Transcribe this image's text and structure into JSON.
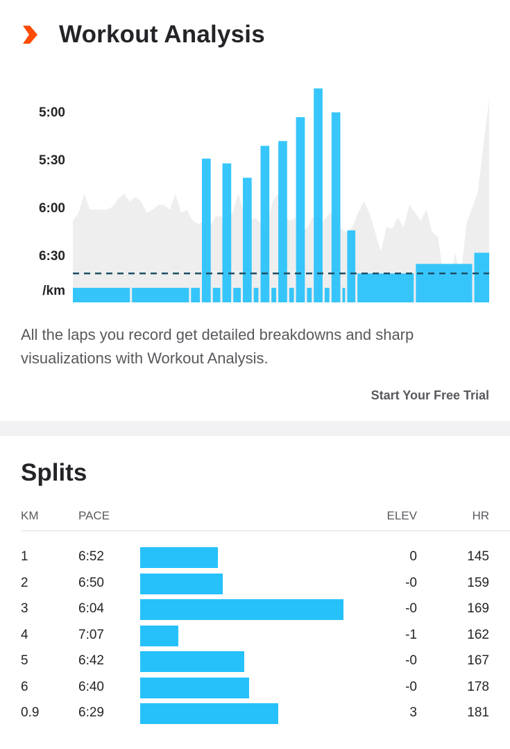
{
  "header": {
    "title": "Workout Analysis",
    "logo_icon": "strava-chevron-icon",
    "accent": "#fc4c02"
  },
  "chart_data": {
    "type": "bar",
    "y_tick_labels": [
      "5:00",
      "5:30",
      "6:00",
      "6:30",
      "/km"
    ],
    "y_ticks_seconds": [
      300,
      330,
      360,
      390
    ],
    "y_range_seconds": [
      414,
      285
    ],
    "bar_color": "#26c1fb",
    "background_color": "#eeeeee",
    "average_line_seconds": 401,
    "lap_bars": [
      {
        "pace_s": 410,
        "weight": 84
      },
      {
        "pace_s": 410,
        "weight": 84
      },
      {
        "pace_s": 410,
        "weight": 13
      },
      {
        "pace_s": 329,
        "weight": 13
      },
      {
        "pace_s": 410,
        "weight": 11
      },
      {
        "pace_s": 332,
        "weight": 13
      },
      {
        "pace_s": 410,
        "weight": 11
      },
      {
        "pace_s": 341,
        "weight": 13
      },
      {
        "pace_s": 410,
        "weight": 7
      },
      {
        "pace_s": 321,
        "weight": 13
      },
      {
        "pace_s": 410,
        "weight": 7
      },
      {
        "pace_s": 318,
        "weight": 13
      },
      {
        "pace_s": 410,
        "weight": 7
      },
      {
        "pace_s": 303,
        "weight": 13
      },
      {
        "pace_s": 410,
        "weight": 7
      },
      {
        "pace_s": 285,
        "weight": 13
      },
      {
        "pace_s": 410,
        "weight": 7
      },
      {
        "pace_s": 300,
        "weight": 13
      },
      {
        "pace_s": 410,
        "weight": 4
      },
      {
        "pace_s": 374,
        "weight": 12
      },
      {
        "pace_s": 401,
        "weight": 83
      },
      {
        "pace_s": 395,
        "weight": 83
      },
      {
        "pace_s": 388,
        "weight": 22
      }
    ],
    "background_pace_s": [
      368,
      363,
      351,
      361,
      361,
      361,
      361,
      359,
      354,
      351,
      356,
      353,
      356,
      363,
      361,
      358,
      358,
      361,
      351,
      363,
      361,
      368,
      370,
      368,
      372,
      365,
      365,
      368,
      363,
      351,
      363,
      368,
      366,
      370,
      373,
      356,
      351,
      363,
      368,
      366,
      373,
      373,
      366,
      366,
      368,
      363,
      366,
      373,
      375,
      372,
      363,
      356,
      363,
      375,
      387,
      372,
      373,
      366,
      372,
      358,
      363,
      368,
      361,
      375,
      378,
      402,
      409,
      388,
      403,
      370,
      360,
      350,
      320,
      292
    ]
  },
  "description": "All the laps you record get detailed breakdowns and sharp visualizations with Workout Analysis.",
  "cta_label": "Start Your Free Trial",
  "splits": {
    "title": "Splits",
    "columns": {
      "km": "KM",
      "pace": "PACE",
      "elev": "ELEV",
      "hr": "HR"
    },
    "bar_color": "#26c1fb",
    "rows": [
      {
        "km": "1",
        "pace": "6:52",
        "elev": "0",
        "hr": "145",
        "pace_s": 412
      },
      {
        "km": "2",
        "pace": "6:50",
        "elev": "-0",
        "hr": "159",
        "pace_s": 410
      },
      {
        "km": "3",
        "pace": "6:04",
        "elev": "-0",
        "hr": "169",
        "pace_s": 364
      },
      {
        "km": "4",
        "pace": "7:07",
        "elev": "-1",
        "hr": "162",
        "pace_s": 427
      },
      {
        "km": "5",
        "pace": "6:42",
        "elev": "-0",
        "hr": "167",
        "pace_s": 402
      },
      {
        "km": "6",
        "pace": "6:40",
        "elev": "-0",
        "hr": "178",
        "pace_s": 400
      },
      {
        "km": "0.9",
        "pace": "6:29",
        "elev": "3",
        "hr": "181",
        "pace_s": 389
      }
    ]
  }
}
